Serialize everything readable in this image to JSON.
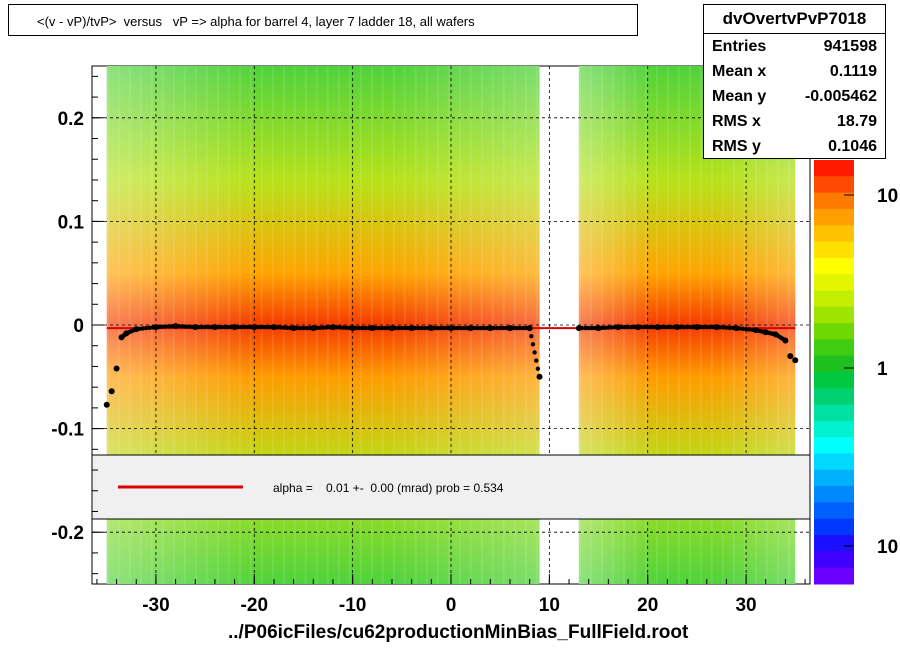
{
  "header": {
    "title": "<(v - vP)/tvP>  versus   vP => alpha for barrel 4, layer 7 ladder 18, all wafers"
  },
  "stats": {
    "name": "dvOvertvPvP7018",
    "rows": [
      {
        "label": "Entries",
        "value": "941598"
      },
      {
        "label": "Mean x",
        "value": "0.1119"
      },
      {
        "label": "Mean y",
        "value": "-0.005462"
      },
      {
        "label": "RMS x",
        "value": "18.79"
      },
      {
        "label": "RMS y",
        "value": "0.1046"
      }
    ]
  },
  "fit_legend": {
    "text": "alpha =    0.01 +-  0.00 (mrad) prob = 0.534",
    "line_color": "#dd0000"
  },
  "colors": {
    "profile_points": "#000000",
    "fit_line": "#dd0000",
    "secondary_points": "#ff00ff",
    "legend_bg": "#f0f0f0"
  },
  "x_axis_title": "../P06icFiles/cu62productionMinBias_FullField.root",
  "chart_data": {
    "type": "heatmap",
    "title": "<(v - vP)/tvP>  versus   vP => alpha for barrel 4, layer 7 ladder 18, all wafers",
    "xlabel": "../P06icFiles/cu62productionMinBias_FullField.root",
    "ylabel": "",
    "xlim": [
      -36.5,
      36.5
    ],
    "ylim": [
      -0.25,
      0.25
    ],
    "xticks": [
      -30,
      -20,
      -10,
      0,
      10,
      20,
      30
    ],
    "yticks": [
      -0.2,
      -0.1,
      0,
      0.1,
      0.2
    ],
    "xtick_labels": [
      "-30",
      "-20",
      "-10",
      "0",
      "10",
      "20",
      "30"
    ],
    "ytick_labels": [
      "-0.2",
      "-0.1",
      "0",
      "0.1",
      "0.2"
    ],
    "grid": true,
    "data_x_ranges": [
      [
        -35,
        9
      ],
      [
        13,
        35
      ]
    ],
    "colorbar": {
      "scale": "log",
      "tick_labels": [
        "10",
        "1",
        "10"
      ]
    },
    "profile": {
      "name": "",
      "x": [
        -35.0,
        -34.5,
        -34.0,
        -33.5,
        -33.0,
        -32.0,
        -30.0,
        -28.0,
        -26.0,
        -24.0,
        -22.0,
        -20.0,
        -18.0,
        -16.0,
        -14.0,
        -12.0,
        -10.0,
        -8.0,
        -6.0,
        -4.0,
        -2.0,
        0.0,
        2.0,
        4.0,
        6.0,
        8.0,
        9.0,
        13.0,
        15.0,
        17.0,
        19.0,
        21.0,
        23.0,
        25.0,
        27.0,
        29.0,
        31.0,
        32.0,
        33.0,
        34.0,
        34.5,
        35.0
      ],
      "y": [
        -0.077,
        -0.064,
        -0.042,
        -0.012,
        -0.008,
        -0.004,
        -0.002,
        -0.001,
        -0.002,
        -0.002,
        -0.002,
        -0.002,
        -0.002,
        -0.003,
        -0.003,
        -0.002,
        -0.003,
        -0.003,
        -0.003,
        -0.003,
        -0.003,
        -0.003,
        -0.003,
        -0.003,
        -0.003,
        -0.003,
        -0.05,
        -0.003,
        -0.003,
        -0.002,
        -0.002,
        -0.002,
        -0.002,
        -0.002,
        -0.002,
        -0.003,
        -0.005,
        -0.007,
        -0.009,
        -0.015,
        -0.03,
        -0.034
      ]
    },
    "fit": {
      "name": "",
      "x": [
        -35,
        35
      ],
      "y": [
        -0.003,
        -0.003
      ]
    },
    "annotations": [
      "alpha =    0.01 +-  0.00 (mrad) prob = 0.534"
    ]
  }
}
